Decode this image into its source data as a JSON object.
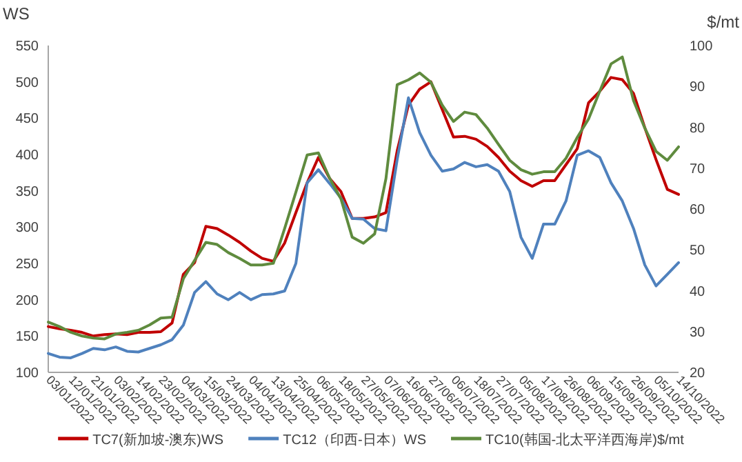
{
  "chart_data": {
    "type": "line",
    "ylabel": "WS",
    "y2label": "$/mt",
    "legend": "bottom",
    "grid": false,
    "marker": "none",
    "line_style": "solid",
    "categories": [
      "03/01/2022",
      null,
      "12/01/2022",
      null,
      "21/01/2022",
      null,
      "03/02/2022",
      null,
      "14/02/2022",
      null,
      "23/02/2022",
      null,
      "04/03/2022",
      null,
      "15/03/2022",
      null,
      "24/03/2022",
      null,
      "04/04/2022",
      null,
      "13/04/2022",
      null,
      "25/04/2022",
      null,
      "06/05/2022",
      null,
      "18/05/2022",
      null,
      "27/05/2022",
      null,
      "07/06/2022",
      null,
      "16/06/2022",
      null,
      "27/06/2022",
      null,
      "06/07/2022",
      null,
      "18/07/2022",
      null,
      "27/07/2022",
      null,
      "05/08/2022",
      null,
      "17/08/2022",
      null,
      "26/08/2022",
      null,
      "06/09/2022",
      null,
      "15/09/2022",
      null,
      "26/09/2022",
      null,
      "05/10/2022",
      null,
      "14/10/2022"
    ],
    "ylim": [
      100,
      550
    ],
    "yticks": [
      100,
      150,
      200,
      250,
      300,
      350,
      400,
      450,
      500,
      550
    ],
    "y2lim": [
      20,
      100
    ],
    "y2ticks": [
      20,
      30,
      40,
      50,
      60,
      70,
      80,
      90,
      100
    ],
    "series": [
      {
        "name": "TC7(新加坡-澳东)WS",
        "color": "#c00000",
        "values": [
          163,
          160,
          158,
          155,
          150,
          152,
          153,
          152,
          155,
          155,
          156,
          168,
          235,
          251,
          301,
          298,
          289,
          279,
          267,
          257,
          253,
          278,
          320,
          361,
          396,
          367,
          349,
          312,
          312,
          314,
          320,
          405,
          468,
          490,
          500,
          462,
          424,
          425,
          421,
          411,
          396,
          377,
          364,
          356,
          364,
          364,
          386,
          408,
          471,
          487,
          506,
          503,
          484,
          437,
          393,
          352,
          345
        ]
      },
      {
        "name": "TC12（印西-日本）WS",
        "color": "#4f81bd",
        "values": [
          126,
          121,
          120,
          126,
          133,
          131,
          135,
          129,
          128,
          133,
          138,
          145,
          165,
          210,
          225,
          208,
          200,
          210,
          200,
          207,
          208,
          212,
          250,
          361,
          379,
          360,
          340,
          312,
          311,
          298,
          295,
          393,
          478,
          430,
          399,
          377,
          380,
          389,
          383,
          386,
          377,
          349,
          286,
          257,
          304,
          304,
          336,
          399,
          405,
          396,
          361,
          336,
          298,
          248,
          219,
          235,
          251
        ]
      },
      {
        "name": "TC10(韩国-北太平洋西海岸)$/mt",
        "color": "#5f8b3e",
        "axis": "y2",
        "values": [
          32.3,
          31.2,
          29.8,
          28.9,
          28.4,
          28.2,
          29.4,
          29.8,
          30.3,
          31.6,
          33.3,
          33.5,
          42.9,
          47.4,
          51.8,
          51.3,
          49.3,
          47.9,
          46.3,
          46.3,
          46.7,
          55.2,
          64.1,
          73.2,
          73.7,
          67.5,
          62.5,
          53.1,
          51.6,
          53.9,
          67.4,
          90.4,
          91.6,
          93.3,
          91.0,
          85.4,
          81.4,
          83.7,
          83.1,
          79.8,
          75.8,
          71.9,
          69.6,
          68.5,
          69.1,
          69.1,
          72.4,
          77.5,
          82.0,
          88.8,
          95.5,
          97.2,
          86.5,
          79.8,
          74.1,
          71.9,
          75.2
        ]
      }
    ]
  }
}
